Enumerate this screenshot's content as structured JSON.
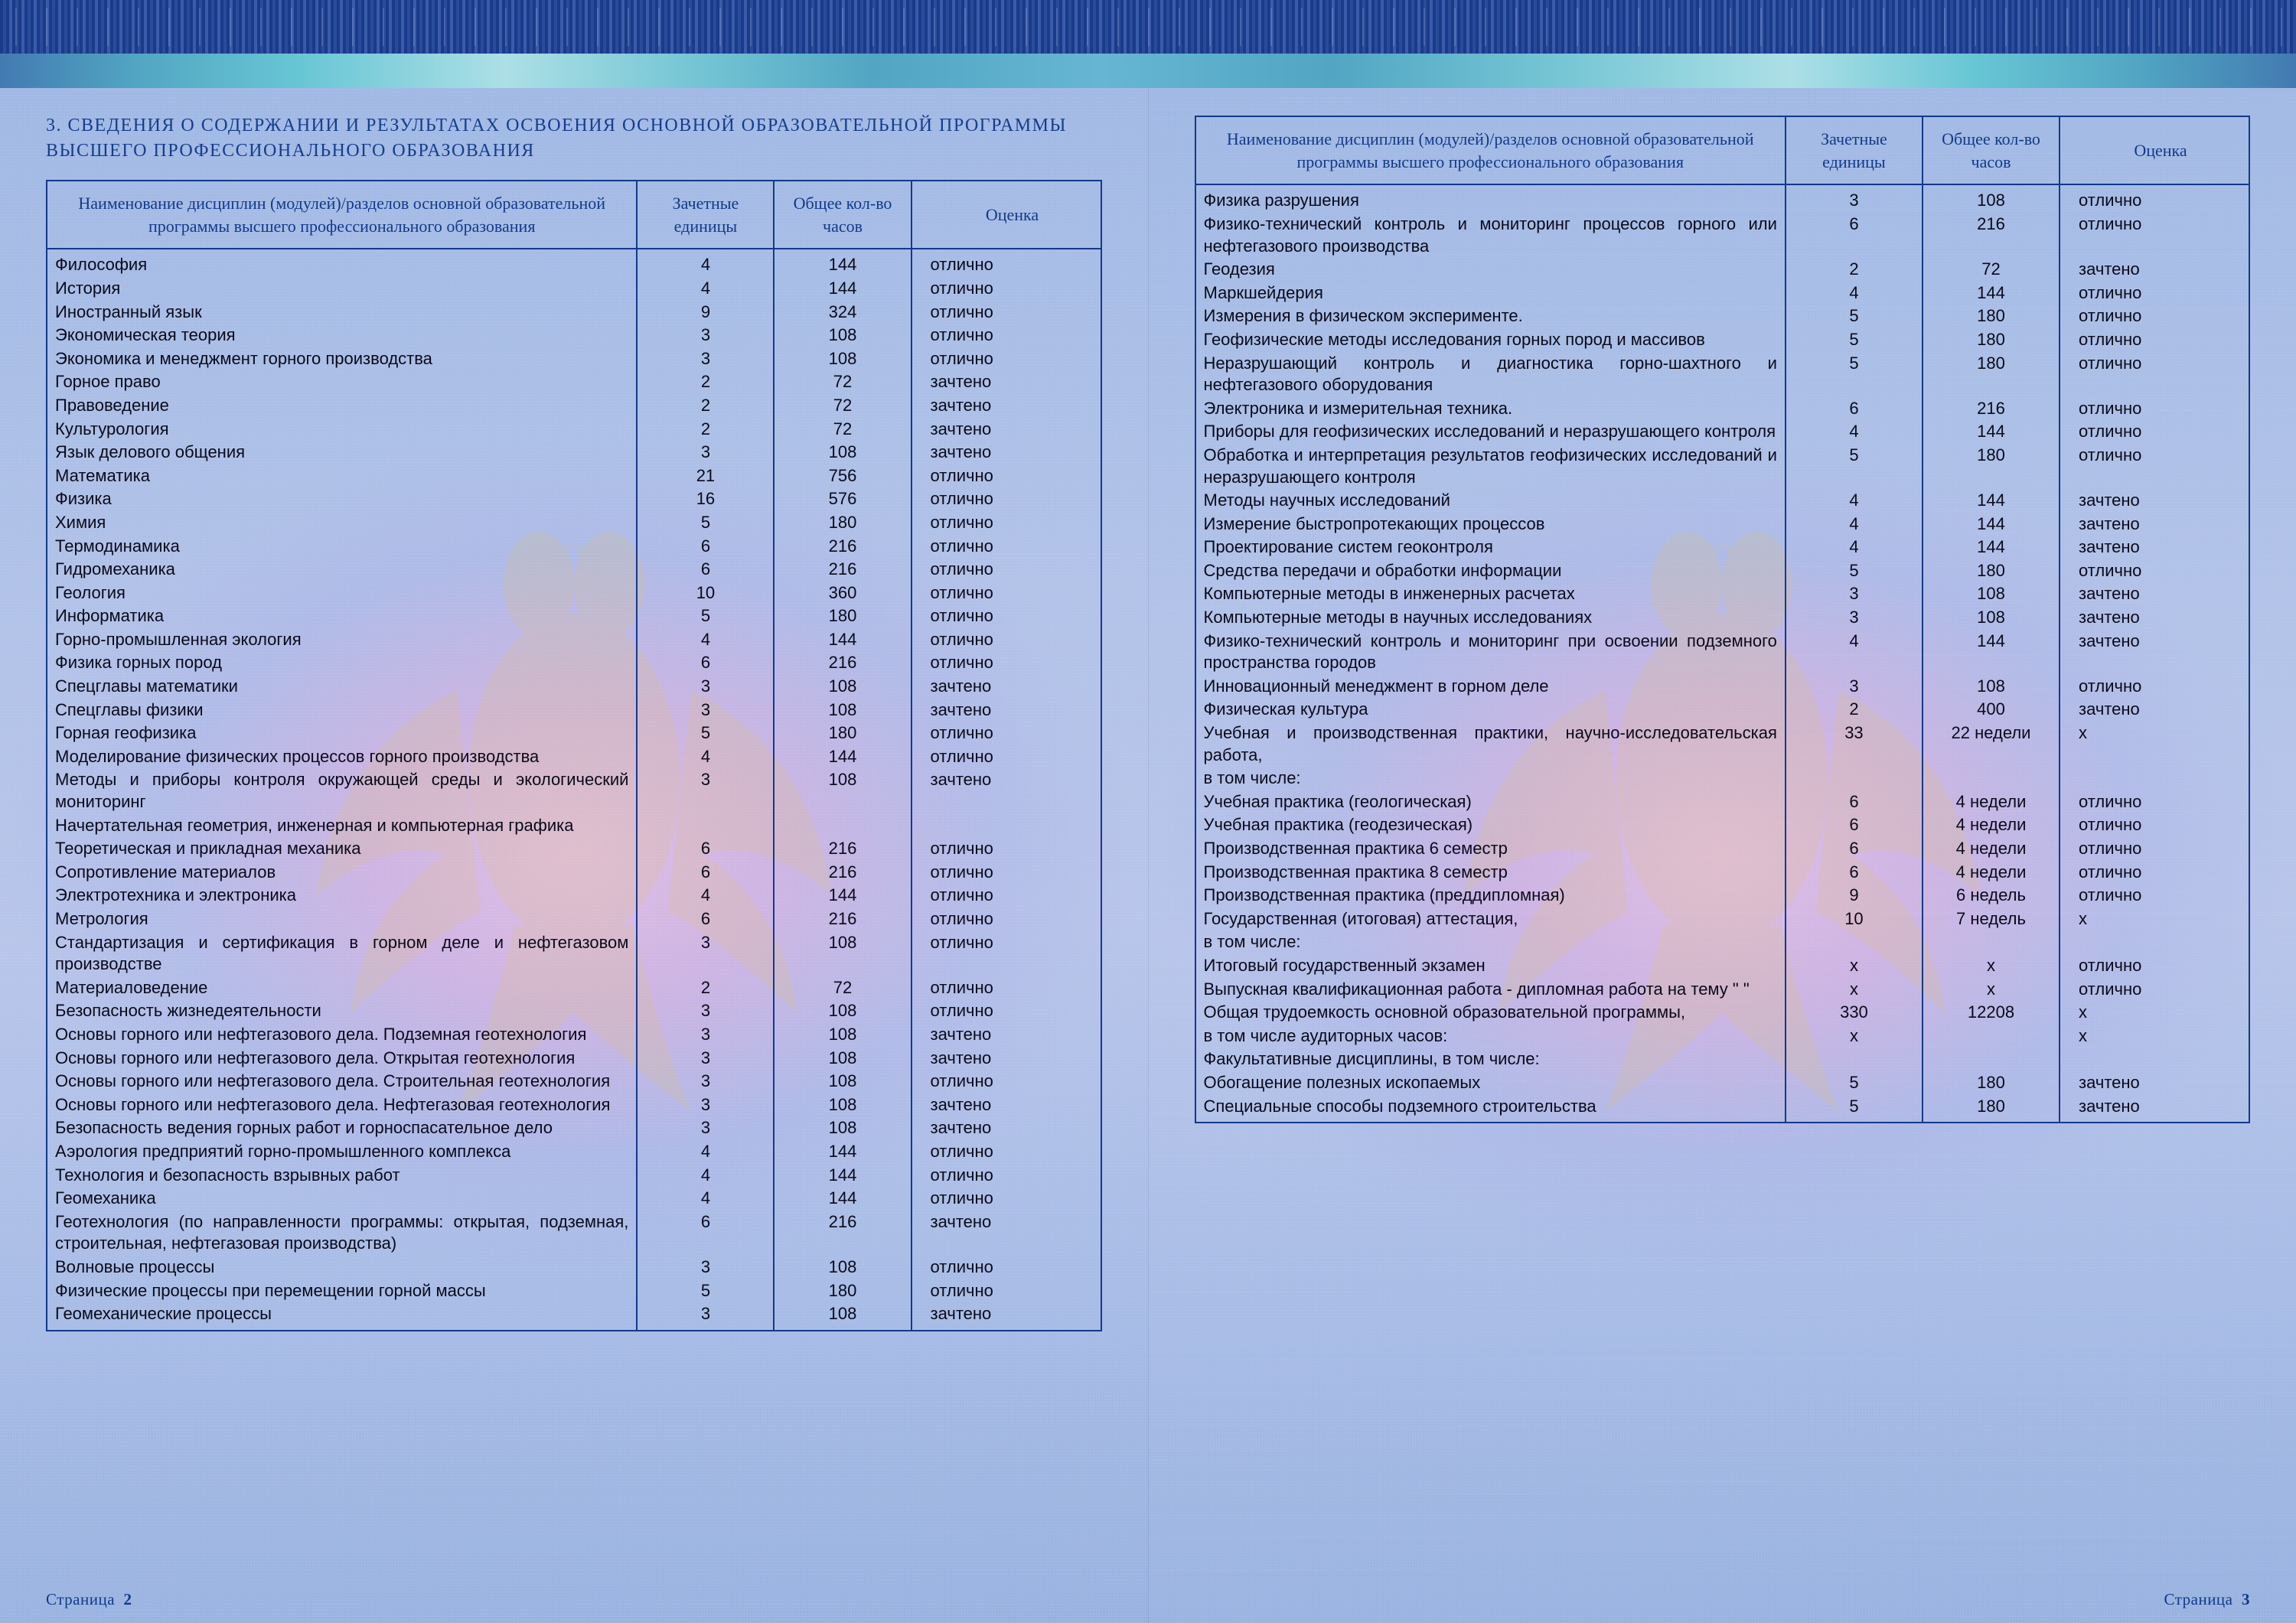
{
  "document_background": {
    "border_color": "#123a8a",
    "header_text_color": "#123a8a",
    "body_text_color": "#0a0a1a",
    "watermark_fill": "#e6c26a"
  },
  "section_heading_line1": "3. СВЕДЕНИЯ О СОДЕРЖАНИИ И РЕЗУЛЬТАТАХ ОСВОЕНИЯ ОСНОВНОЙ ОБРАЗОВАТЕЛЬНОЙ ПРОГРАММЫ",
  "section_heading_line2": "ВЫСШЕГО ПРОФЕССИОНАЛЬНОГО ОБРАЗОВАНИЯ",
  "headers": {
    "name": "Наименование дисциплин (модулей)/разделов основной образовательной программы высшего профессионального образования",
    "credits": "Зачетные единицы",
    "hours": "Общее кол-во часов",
    "grade": "Оценка"
  },
  "page_left_label": "Страница",
  "page_left_num": "2",
  "page_right_label": "Страница",
  "page_right_num": "3",
  "rows_left": [
    {
      "name": "Философия",
      "credits": "4",
      "hours": "144",
      "grade": "отлично"
    },
    {
      "name": "История",
      "credits": "4",
      "hours": "144",
      "grade": "отлично"
    },
    {
      "name": "Иностранный язык",
      "credits": "9",
      "hours": "324",
      "grade": "отлично"
    },
    {
      "name": "Экономическая теория",
      "credits": "3",
      "hours": "108",
      "grade": "отлично"
    },
    {
      "name": "Экономика и менеджмент горного производства",
      "credits": "3",
      "hours": "108",
      "grade": "отлично"
    },
    {
      "name": "Горное право",
      "credits": "2",
      "hours": "72",
      "grade": "зачтено"
    },
    {
      "name": "Правоведение",
      "credits": "2",
      "hours": "72",
      "grade": "зачтено"
    },
    {
      "name": "Культурология",
      "credits": "2",
      "hours": "72",
      "grade": "зачтено"
    },
    {
      "name": "Язык делового общения",
      "credits": "3",
      "hours": "108",
      "grade": "зачтено"
    },
    {
      "name": "Математика",
      "credits": "21",
      "hours": "756",
      "grade": "отлично"
    },
    {
      "name": "Физика",
      "credits": "16",
      "hours": "576",
      "grade": "отлично"
    },
    {
      "name": "Химия",
      "credits": "5",
      "hours": "180",
      "grade": "отлично"
    },
    {
      "name": "Термодинамика",
      "credits": "6",
      "hours": "216",
      "grade": "отлично"
    },
    {
      "name": "Гидромеханика",
      "credits": "6",
      "hours": "216",
      "grade": "отлично"
    },
    {
      "name": "Геология",
      "credits": "10",
      "hours": "360",
      "grade": "отлично"
    },
    {
      "name": "Информатика",
      "credits": "5",
      "hours": "180",
      "grade": "отлично"
    },
    {
      "name": "Горно-промышленная экология",
      "credits": "4",
      "hours": "144",
      "grade": "отлично"
    },
    {
      "name": "Физика горных пород",
      "credits": "6",
      "hours": "216",
      "grade": "отлично"
    },
    {
      "name": "Спецглавы математики",
      "credits": "3",
      "hours": "108",
      "grade": "зачтено"
    },
    {
      "name": "Спецглавы физики",
      "credits": "3",
      "hours": "108",
      "grade": "зачтено"
    },
    {
      "name": "Горная геофизика",
      "credits": "5",
      "hours": "180",
      "grade": "отлично"
    },
    {
      "name": "Моделирование физических процессов горного производства",
      "credits": "4",
      "hours": "144",
      "grade": "отлично"
    },
    {
      "name": "Методы и приборы контроля окружающей среды и экологический мониторинг",
      "credits": "3",
      "hours": "108",
      "grade": "зачтено"
    },
    {
      "name": "Начертательная геометрия, инженерная и компьютерная графика",
      "credits": "",
      "hours": "",
      "grade": ""
    },
    {
      "name": "Теоретическая и прикладная механика",
      "credits": "6",
      "hours": "216",
      "grade": "отлично"
    },
    {
      "name": "Сопротивление материалов",
      "credits": "6",
      "hours": "216",
      "grade": "отлично"
    },
    {
      "name": "Электротехника и электроника",
      "credits": "4",
      "hours": "144",
      "grade": "отлично"
    },
    {
      "name": "Метрология",
      "credits": "6",
      "hours": "216",
      "grade": "отлично"
    },
    {
      "name": "Стандартизация и сертификация в горном деле и нефтегазовом производстве",
      "credits": "3",
      "hours": "108",
      "grade": "отлично"
    },
    {
      "name": "Материаловедение",
      "credits": "2",
      "hours": "72",
      "grade": "отлично"
    },
    {
      "name": "Безопасность жизнедеятельности",
      "credits": "3",
      "hours": "108",
      "grade": "отлично"
    },
    {
      "name": "Основы горного или нефтегазового дела. Подземная геотехнология",
      "credits": "3",
      "hours": "108",
      "grade": "зачтено"
    },
    {
      "name": "Основы горного или нефтегазового дела. Открытая геотехнология",
      "credits": "3",
      "hours": "108",
      "grade": "зачтено"
    },
    {
      "name": "Основы горного или нефтегазового дела. Строительная геотехнология",
      "credits": "3",
      "hours": "108",
      "grade": "отлично"
    },
    {
      "name": "Основы горного или нефтегазового дела. Нефтегазовая геотехнология",
      "credits": "3",
      "hours": "108",
      "grade": "зачтено"
    },
    {
      "name": "Безопасность ведения горных работ и горноспасательное дело",
      "credits": "3",
      "hours": "108",
      "grade": "зачтено"
    },
    {
      "name": "Аэрология предприятий горно-промышленного комплекса",
      "credits": "4",
      "hours": "144",
      "grade": "отлично"
    },
    {
      "name": "Технология и безопасность взрывных работ",
      "credits": "4",
      "hours": "144",
      "grade": "отлично"
    },
    {
      "name": "Геомеханика",
      "credits": "4",
      "hours": "144",
      "grade": "отлично"
    },
    {
      "name": "Геотехнология (по направленности программы: открытая, подземная, строительная, нефтегазовая производства)",
      "credits": "6",
      "hours": "216",
      "grade": "зачтено"
    },
    {
      "name": "Волновые процессы",
      "credits": "3",
      "hours": "108",
      "grade": "отлично"
    },
    {
      "name": "Физические процессы при перемещении горной массы",
      "credits": "5",
      "hours": "180",
      "grade": "отлично"
    },
    {
      "name": "Геомеханические процессы",
      "credits": "3",
      "hours": "108",
      "grade": "зачтено"
    }
  ],
  "rows_right": [
    {
      "name": "Физика разрушения",
      "credits": "3",
      "hours": "108",
      "grade": "отлично"
    },
    {
      "name": "Физико-технический контроль и мониторинг процессов горного или нефтегазового производства",
      "credits": "6",
      "hours": "216",
      "grade": "отлично"
    },
    {
      "name": "Геодезия",
      "credits": "2",
      "hours": "72",
      "grade": "зачтено"
    },
    {
      "name": "Маркшейдерия",
      "credits": "4",
      "hours": "144",
      "grade": "отлично"
    },
    {
      "name": "Измерения в физическом эксперименте.",
      "credits": "5",
      "hours": "180",
      "grade": "отлично"
    },
    {
      "name": "Геофизические методы исследования горных пород и массивов",
      "credits": "5",
      "hours": "180",
      "grade": "отлично"
    },
    {
      "name": "Неразрушающий контроль и диагностика горно-шахтного и нефтегазового оборудования",
      "credits": "5",
      "hours": "180",
      "grade": "отлично"
    },
    {
      "name": "Электроника и измерительная техника.",
      "credits": "6",
      "hours": "216",
      "grade": "отлично"
    },
    {
      "name": "Приборы для геофизических исследований и неразрушающего контроля",
      "credits": "4",
      "hours": "144",
      "grade": "отлично"
    },
    {
      "name": "Обработка и интерпретация результатов геофизических исследований и неразрушающего контроля",
      "credits": "5",
      "hours": "180",
      "grade": "отлично"
    },
    {
      "name": "Методы научных исследований",
      "credits": "4",
      "hours": "144",
      "grade": "зачтено"
    },
    {
      "name": "Измерение быстропротекающих процессов",
      "credits": "4",
      "hours": "144",
      "grade": "зачтено"
    },
    {
      "name": "Проектирование систем геоконтроля",
      "credits": "4",
      "hours": "144",
      "grade": "зачтено"
    },
    {
      "name": "Средства передачи и обработки информации",
      "credits": "5",
      "hours": "180",
      "grade": "отлично"
    },
    {
      "name": "Компьютерные методы в инженерных расчетах",
      "credits": "3",
      "hours": "108",
      "grade": "зачтено"
    },
    {
      "name": "Компьютерные методы в научных исследованиях",
      "credits": "3",
      "hours": "108",
      "grade": "зачтено"
    },
    {
      "name": "Физико-технический контроль и мониторинг при освоении подземного пространства городов",
      "credits": "4",
      "hours": "144",
      "grade": "зачтено"
    },
    {
      "name": "Инновационный менеджмент в горном деле",
      "credits": "3",
      "hours": "108",
      "grade": "отлично"
    },
    {
      "name": "Физическая культура",
      "credits": "2",
      "hours": "400",
      "grade": "зачтено"
    },
    {
      "name": "Учебная и производственная практики, научно-исследовательская работа,",
      "credits": "33",
      "hours": "22 недели",
      "grade": "x"
    },
    {
      "name": "в том числе:",
      "credits": "",
      "hours": "",
      "grade": ""
    },
    {
      "name": "Учебная практика (геологическая)",
      "credits": "6",
      "hours": "4 недели",
      "grade": "отлично"
    },
    {
      "name": "Учебная практика (геодезическая)",
      "credits": "6",
      "hours": "4 недели",
      "grade": "отлично"
    },
    {
      "name": "Производственная практика 6 семестр",
      "credits": "6",
      "hours": "4 недели",
      "grade": "отлично"
    },
    {
      "name": "Производственная практика 8 семестр",
      "credits": "6",
      "hours": "4 недели",
      "grade": "отлично"
    },
    {
      "name": "Производственная практика (преддипломная)",
      "credits": "9",
      "hours": "6 недель",
      "grade": "отлично"
    },
    {
      "name": "Государственная (итоговая) аттестация,",
      "credits": "10",
      "hours": "7 недель",
      "grade": "x"
    },
    {
      "name": "в том числе:",
      "credits": "",
      "hours": "",
      "grade": ""
    },
    {
      "name": "Итоговый государственный экзамен",
      "credits": "x",
      "hours": "x",
      "grade": "отлично"
    },
    {
      "name": "Выпускная квалификационная работа - дипломная работа на тему \"                                                                                                                           \"",
      "credits": "x",
      "hours": "x",
      "grade": "отлично"
    },
    {
      "name": "Общая трудоемкость основной образовательной программы,",
      "credits": "330",
      "hours": "12208",
      "grade": "x"
    },
    {
      "name": "в том числе аудиторных часов:",
      "credits": "x",
      "hours": "",
      "grade": "x"
    },
    {
      "name": "Факультативные дисциплины, в том числе:",
      "credits": "",
      "hours": "",
      "grade": ""
    },
    {
      "name": "Обогащение полезных ископаемых",
      "credits": "5",
      "hours": "180",
      "grade": "зачтено"
    },
    {
      "name": "Специальные способы подземного строительства",
      "credits": "5",
      "hours": "180",
      "grade": "зачтено"
    }
  ]
}
